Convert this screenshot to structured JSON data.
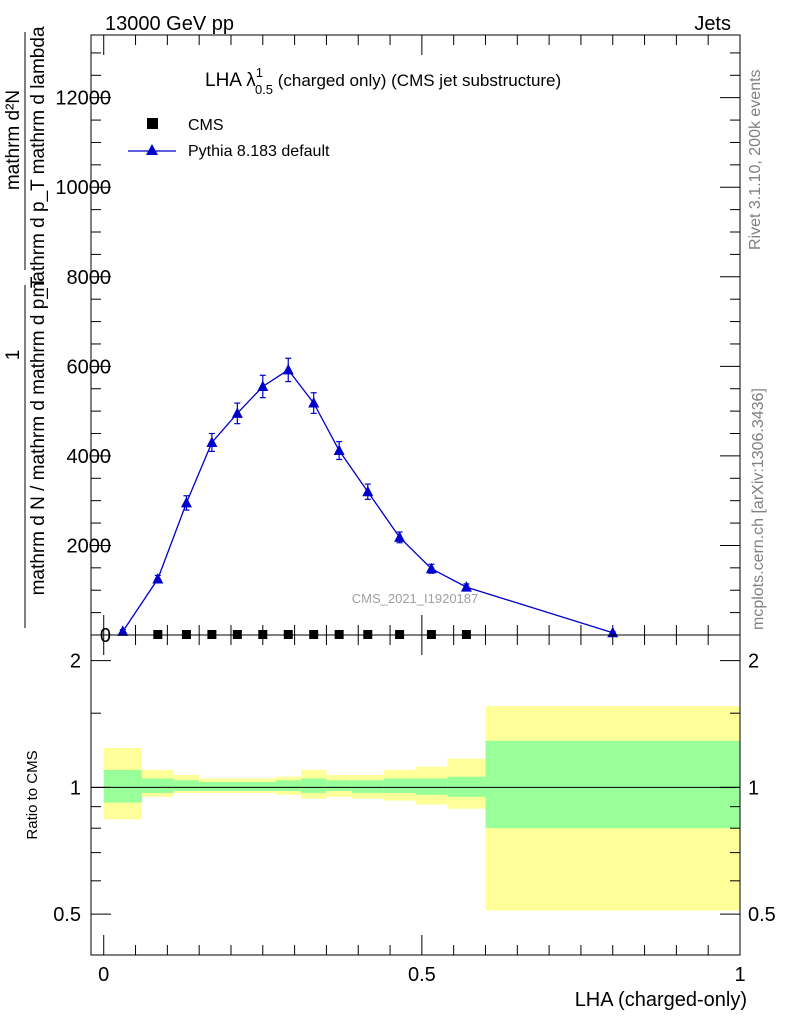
{
  "header": {
    "left": "13000 GeV pp",
    "right": "Jets"
  },
  "side_labels": {
    "rivet": "Rivet 3.1.10,  200k events",
    "mcplots": "mcplots.cern.ch [arXiv:1306.3436]"
  },
  "main_plot": {
    "title_prefix": "LHA λ",
    "title_sup": "1",
    "title_sub": "0.5",
    "title_suffix": " (charged only) (CMS jet substructure)",
    "watermark": "CMS_2021_I1920187",
    "ylabel_num": "mathrm d²N",
    "ylabel_den": "mathrm d p_T mathrm d lambda",
    "ylabel_pre_num": "1",
    "ylabel_pre_den": "mathrm d N / mathrm d mathrm d p_T",
    "legend": [
      {
        "label": "CMS",
        "marker": "square",
        "color": "#000000"
      },
      {
        "label": "Pythia 8.183 default",
        "marker": "triangle",
        "color": "#0000cc"
      }
    ],
    "y_ticks": [
      "0",
      "2000",
      "4000",
      "6000",
      "8000",
      "10000",
      "12000"
    ]
  },
  "ratio_plot": {
    "ylabel": "Ratio to CMS",
    "y_ticks": [
      "0.5",
      "1",
      "2"
    ],
    "x_ticks": [
      "0",
      "0.5",
      "1"
    ],
    "xlabel": "LHA (charged-only)"
  },
  "chart_data": {
    "type": "line",
    "xlim": [
      -0.02,
      1.0
    ],
    "ylim": [
      0,
      13400
    ],
    "ratio_ylim": [
      0.4,
      2.3
    ],
    "ratio_scale": "log",
    "colors": {
      "pythia": "#0000cc",
      "cms": "#000000",
      "band_inner": "#99ff99",
      "band_outer": "#ffff99"
    },
    "cms": {
      "x": [
        0.085,
        0.13,
        0.17,
        0.21,
        0.25,
        0.29,
        0.33,
        0.37,
        0.415,
        0.465,
        0.515,
        0.57
      ],
      "y": [
        0,
        0,
        0,
        0,
        0,
        0,
        0,
        0,
        0,
        0,
        0,
        0
      ]
    },
    "pythia": {
      "x": [
        0.03,
        0.085,
        0.13,
        0.17,
        0.21,
        0.25,
        0.29,
        0.33,
        0.37,
        0.415,
        0.465,
        0.515,
        0.57,
        0.8
      ],
      "y": [
        80,
        1250,
        2950,
        4300,
        4950,
        5550,
        5920,
        5180,
        4120,
        3200,
        2180,
        1480,
        1070,
        50
      ],
      "err": [
        40,
        80,
        160,
        200,
        230,
        250,
        260,
        230,
        200,
        170,
        120,
        100,
        70,
        20
      ]
    },
    "ratio_bands": {
      "edges": [
        0.0,
        0.06,
        0.11,
        0.15,
        0.19,
        0.23,
        0.27,
        0.31,
        0.35,
        0.39,
        0.44,
        0.49,
        0.54,
        0.6,
        1.0
      ],
      "inner_lo": [
        0.92,
        0.97,
        0.98,
        0.98,
        0.98,
        0.98,
        0.98,
        0.97,
        0.98,
        0.97,
        0.97,
        0.96,
        0.95,
        0.8
      ],
      "inner_hi": [
        1.1,
        1.05,
        1.04,
        1.03,
        1.03,
        1.03,
        1.04,
        1.05,
        1.04,
        1.04,
        1.05,
        1.05,
        1.06,
        1.29
      ],
      "outer_lo": [
        0.84,
        0.95,
        0.97,
        0.97,
        0.97,
        0.97,
        0.96,
        0.94,
        0.95,
        0.94,
        0.93,
        0.91,
        0.89,
        0.51
      ],
      "outer_hi": [
        1.24,
        1.1,
        1.07,
        1.05,
        1.05,
        1.05,
        1.06,
        1.1,
        1.07,
        1.07,
        1.1,
        1.12,
        1.17,
        1.56
      ]
    }
  }
}
